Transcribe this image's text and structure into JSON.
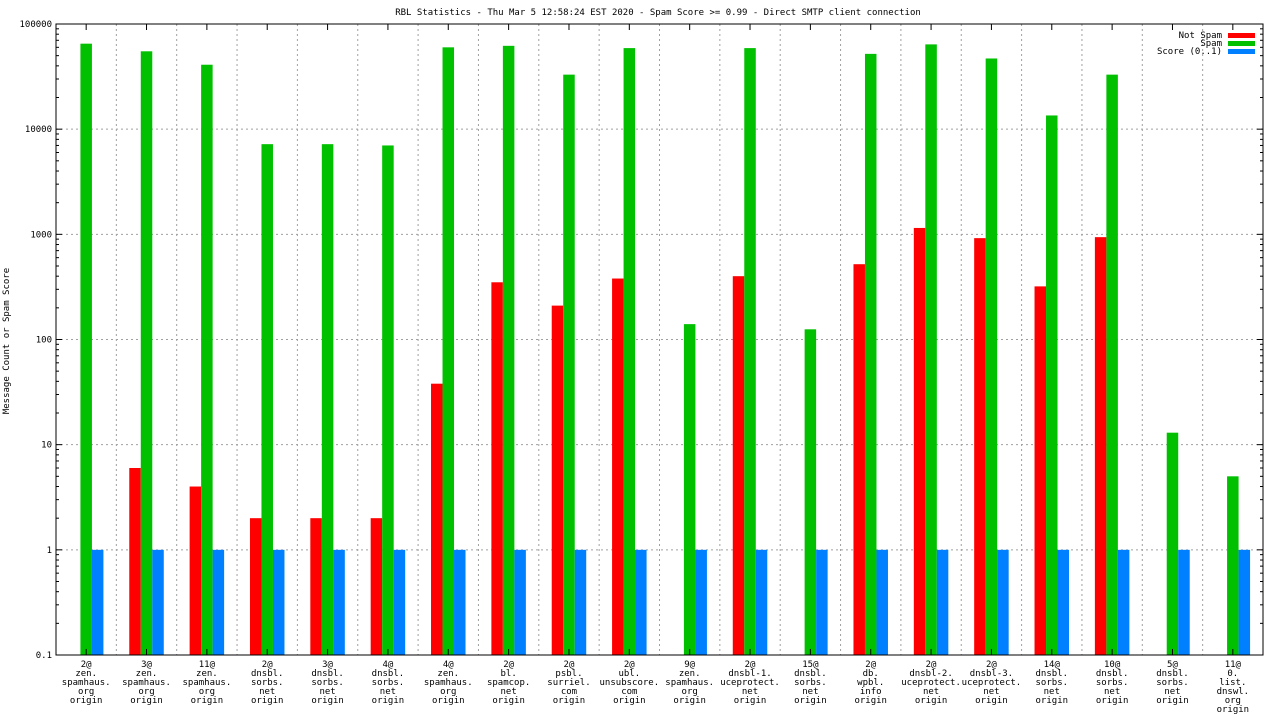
{
  "chart_data": {
    "type": "bar",
    "title": "RBL Statistics - Thu Mar  5 12:58:24 EST 2020 - Spam Score >= 0.99 - Direct SMTP client connection",
    "ylabel": "Message Count or Spam Score",
    "xlabel": "",
    "yscale": "log",
    "ylim": [
      0.1,
      100000
    ],
    "yticks": [
      "0.1",
      "1",
      "10",
      "100",
      "1000",
      "10000",
      "100000"
    ],
    "grid": true,
    "legend_position": "top-right",
    "categories": [
      [
        "2@",
        "zen.",
        "spamhaus.",
        "org",
        "origin"
      ],
      [
        "3@",
        "zen.",
        "spamhaus.",
        "org",
        "origin"
      ],
      [
        "11@",
        "zen.",
        "spamhaus.",
        "org",
        "origin"
      ],
      [
        "2@",
        "dnsbl.",
        "sorbs.",
        "net",
        "origin"
      ],
      [
        "3@",
        "dnsbl.",
        "sorbs.",
        "net",
        "origin"
      ],
      [
        "4@",
        "dnsbl.",
        "sorbs.",
        "net",
        "origin"
      ],
      [
        "4@",
        "zen.",
        "spamhaus.",
        "org",
        "origin"
      ],
      [
        "2@",
        "bl.",
        "spamcop.",
        "net",
        "origin"
      ],
      [
        "2@",
        "psbl.",
        "surriel.",
        "com",
        "origin"
      ],
      [
        "2@",
        "ubl.",
        "unsubscore.",
        "com",
        "origin"
      ],
      [
        "9@",
        "zen.",
        "spamhaus.",
        "org",
        "origin"
      ],
      [
        "2@",
        "dnsbl-1.",
        "uceprotect.",
        "net",
        "origin"
      ],
      [
        "15@",
        "dnsbl.",
        "sorbs.",
        "net",
        "origin"
      ],
      [
        "2@",
        "db.",
        "wpbl.",
        "info",
        "origin"
      ],
      [
        "2@",
        "dnsbl-2.",
        "uceprotect.",
        "net",
        "origin"
      ],
      [
        "2@",
        "dnsbl-3.",
        "uceprotect.",
        "net",
        "origin"
      ],
      [
        "14@",
        "dnsbl.",
        "sorbs.",
        "net",
        "origin"
      ],
      [
        "10@",
        "dnsbl.",
        "sorbs.",
        "net",
        "origin"
      ],
      [
        "5@",
        "dnsbl.",
        "sorbs.",
        "net",
        "origin"
      ],
      [
        "11@",
        "0.",
        "list.",
        "dnswl.",
        "org",
        "origin"
      ]
    ],
    "series": [
      {
        "name": "Not Spam",
        "color": "#ff0000",
        "values": [
          null,
          6,
          4,
          2,
          2,
          2,
          38,
          350,
          210,
          380,
          null,
          400,
          null,
          520,
          1150,
          920,
          320,
          940,
          null,
          null
        ]
      },
      {
        "name": "Spam",
        "color": "#00c000",
        "values": [
          65000,
          55000,
          41000,
          7200,
          7200,
          7000,
          60000,
          62000,
          33000,
          59000,
          140,
          59000,
          125,
          52000,
          64000,
          47000,
          13500,
          33000,
          13,
          5
        ]
      },
      {
        "name": "Score (0..1)",
        "color": "#0080ff",
        "values": [
          1,
          1,
          1,
          1,
          1,
          1,
          1,
          1,
          1,
          1,
          1,
          1,
          1,
          1,
          1,
          1,
          1,
          1,
          1,
          1
        ]
      }
    ]
  }
}
